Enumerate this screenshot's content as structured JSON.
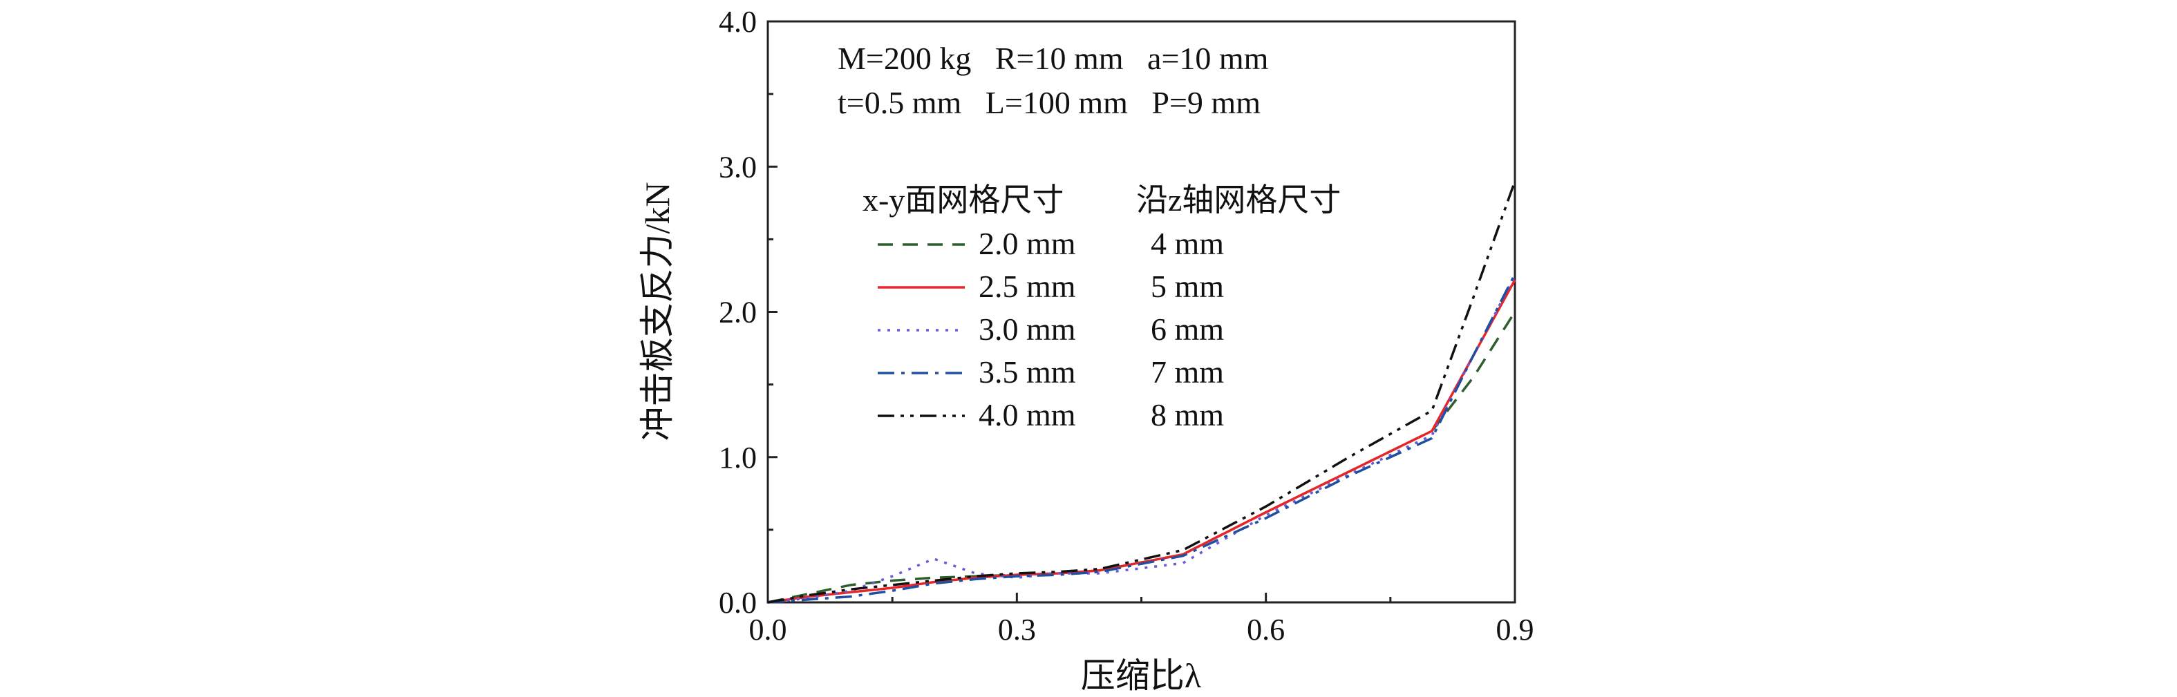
{
  "chart_data": {
    "type": "line",
    "xlabel": "压缩比λ",
    "ylabel": "冲击板支反力/kN",
    "xlim": [
      0.0,
      0.9
    ],
    "ylim": [
      0.0,
      4.0
    ],
    "xticks": [
      "0.0",
      "0.3",
      "0.6",
      "0.9"
    ],
    "yticks": [
      "0.0",
      "1.0",
      "2.0",
      "3.0",
      "4.0"
    ],
    "grid": false,
    "parameters": {
      "line1": "M=200 kg   R=10 mm   a=10 mm",
      "line2": "t=0.5 mm   L=100 mm   P=9 mm"
    },
    "legend": {
      "placement": "upper-left",
      "header_xy": "x-y面网格尺寸",
      "header_z": "沿z轴网格尺寸"
    },
    "series": [
      {
        "name": "2.0 mm",
        "z_size": "4 mm",
        "color": "#2e5e2e",
        "dash": "dash",
        "x": [
          0.0,
          0.05,
          0.1,
          0.15,
          0.2,
          0.25,
          0.3,
          0.35,
          0.4,
          0.5,
          0.6,
          0.7,
          0.8,
          0.85,
          0.9
        ],
        "y": [
          0.0,
          0.06,
          0.12,
          0.15,
          0.17,
          0.18,
          0.19,
          0.2,
          0.22,
          0.33,
          0.62,
          0.9,
          1.18,
          1.55,
          2.0
        ]
      },
      {
        "name": "2.5 mm",
        "z_size": "5 mm",
        "color": "#e8262a",
        "dash": "solid",
        "x": [
          0.0,
          0.05,
          0.1,
          0.15,
          0.2,
          0.25,
          0.3,
          0.35,
          0.4,
          0.5,
          0.6,
          0.7,
          0.8,
          0.85,
          0.9
        ],
        "y": [
          0.0,
          0.04,
          0.07,
          0.1,
          0.14,
          0.17,
          0.19,
          0.2,
          0.22,
          0.33,
          0.62,
          0.9,
          1.18,
          1.7,
          2.22
        ]
      },
      {
        "name": "3.0 mm",
        "z_size": "6 mm",
        "color": "#6a5ad8",
        "dash": "dot",
        "x": [
          0.0,
          0.05,
          0.1,
          0.15,
          0.2,
          0.25,
          0.3,
          0.35,
          0.4,
          0.5,
          0.6,
          0.7,
          0.8,
          0.85,
          0.9
        ],
        "y": [
          0.0,
          0.03,
          0.08,
          0.18,
          0.3,
          0.2,
          0.17,
          0.2,
          0.2,
          0.27,
          0.6,
          0.88,
          1.15,
          1.7,
          2.25
        ]
      },
      {
        "name": "3.5 mm",
        "z_size": "7 mm",
        "color": "#1f4fa0",
        "dash": "dashdot",
        "x": [
          0.0,
          0.05,
          0.1,
          0.15,
          0.2,
          0.25,
          0.3,
          0.35,
          0.4,
          0.5,
          0.6,
          0.7,
          0.8,
          0.85,
          0.9
        ],
        "y": [
          0.0,
          0.02,
          0.04,
          0.08,
          0.13,
          0.16,
          0.18,
          0.19,
          0.21,
          0.32,
          0.58,
          0.87,
          1.13,
          1.7,
          2.26
        ]
      },
      {
        "name": "4.0 mm",
        "z_size": "8 mm",
        "color": "#111111",
        "dash": "dashdotdot",
        "x": [
          0.0,
          0.05,
          0.1,
          0.15,
          0.2,
          0.25,
          0.3,
          0.35,
          0.4,
          0.5,
          0.6,
          0.7,
          0.8,
          0.85,
          0.9
        ],
        "y": [
          0.0,
          0.05,
          0.09,
          0.12,
          0.15,
          0.18,
          0.2,
          0.21,
          0.23,
          0.36,
          0.66,
          1.0,
          1.32,
          2.1,
          2.9
        ]
      }
    ]
  }
}
